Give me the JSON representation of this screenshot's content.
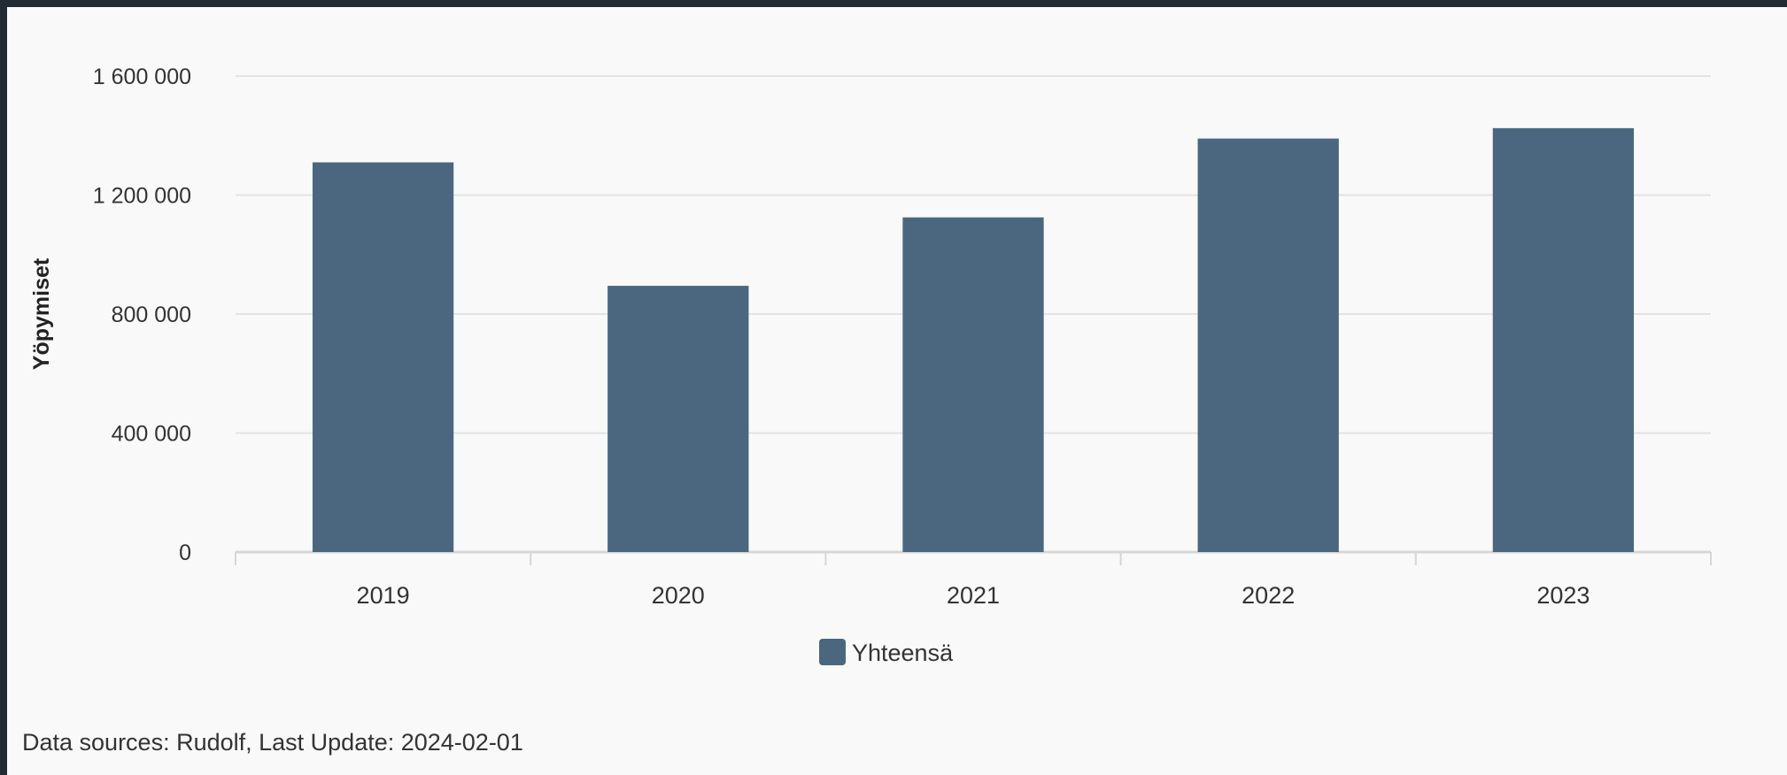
{
  "chart_data": {
    "type": "bar",
    "categories": [
      "2019",
      "2020",
      "2021",
      "2022",
      "2023"
    ],
    "series": [
      {
        "name": "Yhteensä",
        "values": [
          1310000,
          895000,
          1125000,
          1390000,
          1425000
        ]
      }
    ],
    "ylabel": "Yöpymiset",
    "xlabel": "",
    "ylim": [
      0,
      1600000
    ],
    "yticks": [
      0,
      400000,
      800000,
      1200000,
      1600000
    ],
    "ytick_labels": [
      "0",
      "400 000",
      "800 000",
      "1 200 000",
      "1 600 000"
    ],
    "grid": true,
    "legend": "bottom-center",
    "colors": {
      "bar": "#4a677f",
      "grid": "#e3e3e3",
      "axis": "#d6d6d6",
      "text": "#333333"
    }
  },
  "footer": {
    "source_text": "Data sources: Rudolf, Last Update: 2024-02-01"
  }
}
